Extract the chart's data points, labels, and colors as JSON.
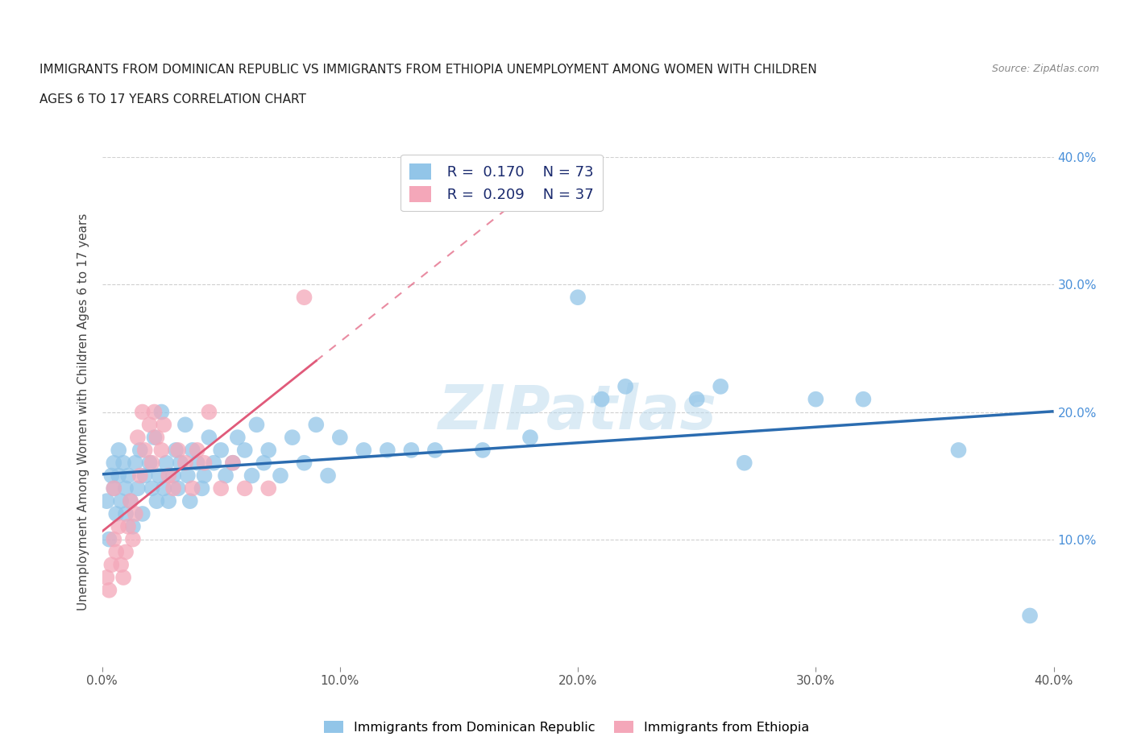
{
  "title_line1": "IMMIGRANTS FROM DOMINICAN REPUBLIC VS IMMIGRANTS FROM ETHIOPIA UNEMPLOYMENT AMONG WOMEN WITH CHILDREN",
  "title_line2": "AGES 6 TO 17 YEARS CORRELATION CHART",
  "source_text": "Source: ZipAtlas.com",
  "ylabel": "Unemployment Among Women with Children Ages 6 to 17 years",
  "xlim": [
    0.0,
    0.4
  ],
  "ylim": [
    0.0,
    0.4
  ],
  "xtick_vals": [
    0.0,
    0.1,
    0.2,
    0.3,
    0.4
  ],
  "xtick_labels": [
    "0.0%",
    "10.0%",
    "20.0%",
    "30.0%",
    "40.0%"
  ],
  "ytick_vals": [
    0.1,
    0.2,
    0.3,
    0.4
  ],
  "ytick_labels": [
    "10.0%",
    "20.0%",
    "30.0%",
    "40.0%"
  ],
  "blue_color": "#92C5E8",
  "pink_color": "#F4A7B9",
  "blue_line_color": "#2B6CB0",
  "pink_line_color": "#E05A7A",
  "blue_R": 0.17,
  "blue_N": 73,
  "pink_R": 0.209,
  "pink_N": 37,
  "legend_label_blue": "Immigrants from Dominican Republic",
  "legend_label_pink": "Immigrants from Ethiopia",
  "watermark": "ZIPatlas",
  "blue_x": [
    0.002,
    0.003,
    0.004,
    0.005,
    0.005,
    0.006,
    0.007,
    0.007,
    0.008,
    0.009,
    0.01,
    0.01,
    0.011,
    0.012,
    0.013,
    0.014,
    0.015,
    0.016,
    0.017,
    0.018,
    0.02,
    0.021,
    0.022,
    0.023,
    0.024,
    0.025,
    0.026,
    0.027,
    0.028,
    0.03,
    0.031,
    0.032,
    0.033,
    0.035,
    0.036,
    0.037,
    0.038,
    0.04,
    0.042,
    0.043,
    0.045,
    0.047,
    0.05,
    0.052,
    0.055,
    0.057,
    0.06,
    0.063,
    0.065,
    0.068,
    0.07,
    0.075,
    0.08,
    0.085,
    0.09,
    0.095,
    0.1,
    0.11,
    0.12,
    0.13,
    0.14,
    0.16,
    0.18,
    0.2,
    0.21,
    0.22,
    0.25,
    0.26,
    0.27,
    0.3,
    0.32,
    0.36,
    0.39
  ],
  "blue_y": [
    0.13,
    0.1,
    0.15,
    0.16,
    0.14,
    0.12,
    0.17,
    0.15,
    0.13,
    0.16,
    0.14,
    0.12,
    0.15,
    0.13,
    0.11,
    0.16,
    0.14,
    0.17,
    0.12,
    0.15,
    0.16,
    0.14,
    0.18,
    0.13,
    0.15,
    0.2,
    0.14,
    0.16,
    0.13,
    0.15,
    0.17,
    0.14,
    0.16,
    0.19,
    0.15,
    0.13,
    0.17,
    0.16,
    0.14,
    0.15,
    0.18,
    0.16,
    0.17,
    0.15,
    0.16,
    0.18,
    0.17,
    0.15,
    0.19,
    0.16,
    0.17,
    0.15,
    0.18,
    0.16,
    0.19,
    0.15,
    0.18,
    0.17,
    0.17,
    0.17,
    0.17,
    0.17,
    0.18,
    0.29,
    0.21,
    0.22,
    0.21,
    0.22,
    0.16,
    0.21,
    0.21,
    0.17,
    0.04
  ],
  "pink_x": [
    0.002,
    0.003,
    0.004,
    0.005,
    0.005,
    0.006,
    0.007,
    0.008,
    0.009,
    0.01,
    0.011,
    0.012,
    0.013,
    0.014,
    0.015,
    0.016,
    0.017,
    0.018,
    0.02,
    0.021,
    0.022,
    0.023,
    0.025,
    0.026,
    0.028,
    0.03,
    0.032,
    0.035,
    0.038,
    0.04,
    0.043,
    0.045,
    0.05,
    0.055,
    0.06,
    0.07,
    0.085
  ],
  "pink_y": [
    0.07,
    0.06,
    0.08,
    0.1,
    0.14,
    0.09,
    0.11,
    0.08,
    0.07,
    0.09,
    0.11,
    0.13,
    0.1,
    0.12,
    0.18,
    0.15,
    0.2,
    0.17,
    0.19,
    0.16,
    0.2,
    0.18,
    0.17,
    0.19,
    0.15,
    0.14,
    0.17,
    0.16,
    0.14,
    0.17,
    0.16,
    0.2,
    0.14,
    0.16,
    0.14,
    0.14,
    0.29
  ],
  "background_color": "#ffffff",
  "grid_color": "#d0d0d0",
  "right_tick_color": "#4A90D9"
}
